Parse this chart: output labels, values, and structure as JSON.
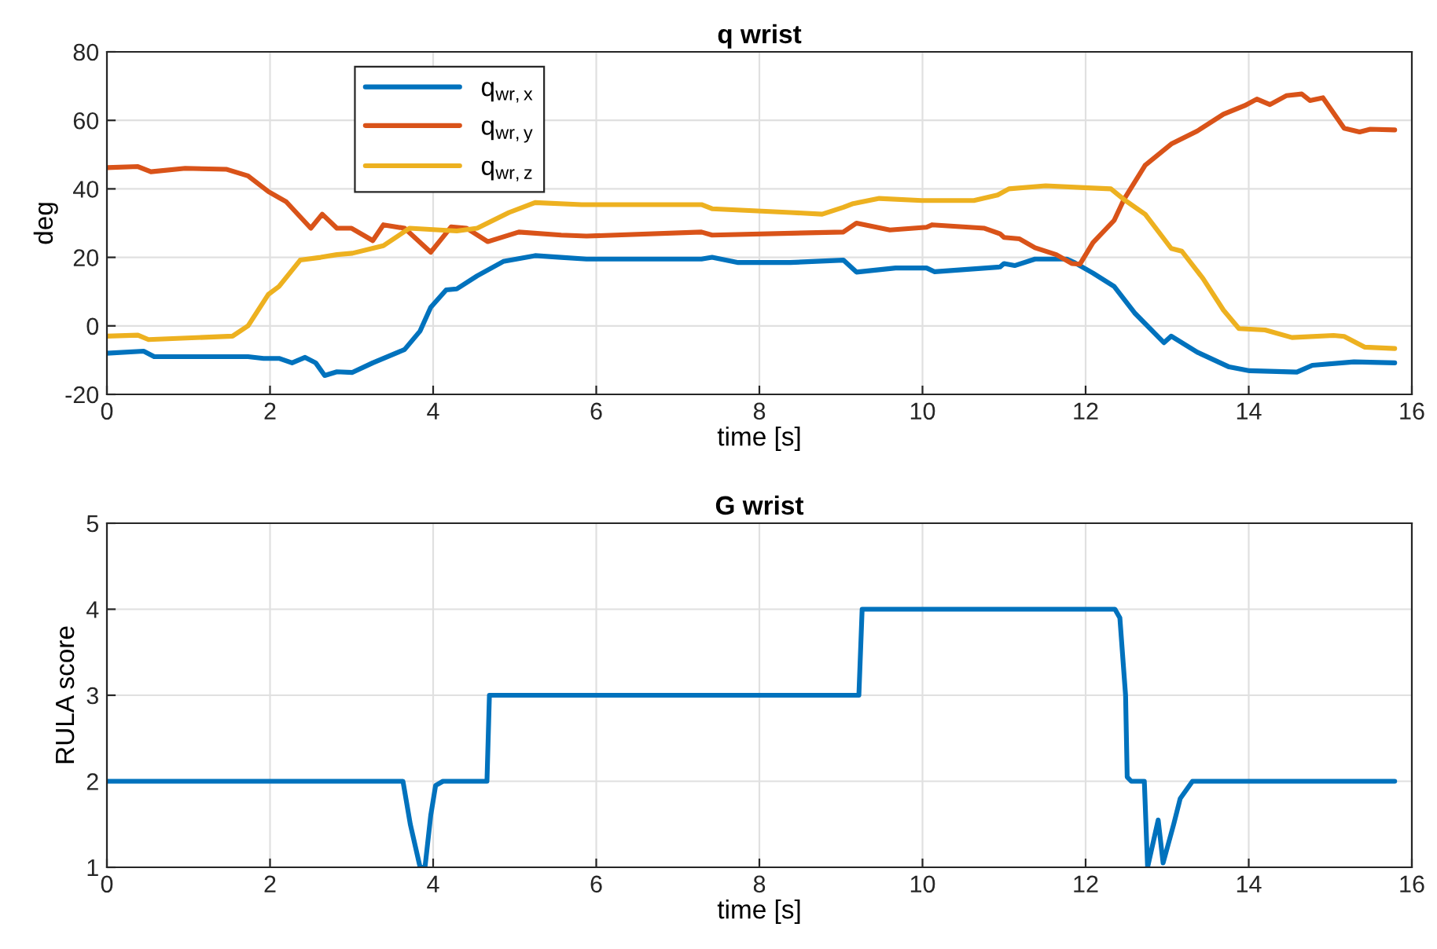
{
  "chart_data": [
    {
      "type": "line",
      "title": "q wrist",
      "xlabel": "time [s]",
      "ylabel": "deg",
      "xlim": [
        0,
        16
      ],
      "xticks": [
        0,
        2,
        4,
        6,
        8,
        10,
        12,
        14,
        16
      ],
      "ylim": [
        -20,
        80
      ],
      "yticks": [
        -20,
        0,
        20,
        40,
        60,
        80
      ],
      "grid": true,
      "legend": "top left",
      "series": [
        {
          "name": "q$_{wr,x}$",
          "color": "#0072bd",
          "x": [
            0,
            0.45,
            0.58,
            1.73,
            1.92,
            2.11,
            2.27,
            2.43,
            2.56,
            2.67,
            2.82,
            3.01,
            3.26,
            3.65,
            3.84,
            3.97,
            4.16,
            4.29,
            4.54,
            4.86,
            5.25,
            5.57,
            5.88,
            7.29,
            7.42,
            7.74,
            8.38,
            9.03,
            9.19,
            9.67,
            10.05,
            10.15,
            10.95,
            11.0,
            11.13,
            11.38,
            11.77,
            11.87,
            12.09,
            12.35,
            12.6,
            12.96,
            13.05,
            13.37,
            13.76,
            14.01,
            14.59,
            14.78,
            15.29,
            15.79
          ],
          "values": [
            -8,
            -7.4,
            -9,
            -9,
            -9.5,
            -9.5,
            -10.8,
            -9.2,
            -10.8,
            -14.5,
            -13.4,
            -13.6,
            -10.8,
            -6.9,
            -1.5,
            5.4,
            10.5,
            10.8,
            14.6,
            18.8,
            20.5,
            20,
            19.5,
            19.5,
            20,
            18.5,
            18.5,
            19.2,
            15.7,
            16.9,
            16.9,
            15.8,
            17.2,
            18.2,
            17.6,
            19.5,
            19.5,
            18.4,
            15.4,
            11.5,
            3.8,
            -4.9,
            -3,
            -7.7,
            -12,
            -13.1,
            -13.5,
            -11.5,
            -10.5,
            -10.8
          ]
        },
        {
          "name": "q$_{wr,y}$",
          "color": "#d95319",
          "x": [
            0,
            0.38,
            0.54,
            0.96,
            1.47,
            1.73,
            1.98,
            2.2,
            2.5,
            2.64,
            2.82,
            3.0,
            3.26,
            3.39,
            3.65,
            3.97,
            4.22,
            4.41,
            4.67,
            5.05,
            5.57,
            5.88,
            7.29,
            7.42,
            9.03,
            9.19,
            9.6,
            10.05,
            10.12,
            10.76,
            10.95,
            11.0,
            11.19,
            11.38,
            11.64,
            11.83,
            11.93,
            12.09,
            12.35,
            12.47,
            12.73,
            13.05,
            13.37,
            13.69,
            13.95,
            14.1,
            14.26,
            14.46,
            14.65,
            14.75,
            14.91,
            15.17,
            15.36,
            15.49,
            15.79
          ],
          "values": [
            46.2,
            46.5,
            45,
            46,
            45.7,
            43.8,
            39.2,
            36.2,
            28.5,
            32.6,
            28.5,
            28.5,
            24.9,
            29.5,
            28.5,
            21.5,
            28.9,
            28.5,
            24.6,
            27.4,
            26.5,
            26.2,
            27.4,
            26.5,
            27.4,
            30,
            28,
            28.8,
            29.5,
            28.5,
            26.9,
            25.8,
            25.4,
            22.8,
            20.8,
            18.2,
            18,
            24.3,
            30.8,
            36.9,
            46.9,
            53.1,
            56.9,
            61.8,
            64.3,
            66.2,
            64.6,
            67.2,
            67.7,
            65.8,
            66.6,
            57.7,
            56.6,
            57.4,
            57.2
          ]
        },
        {
          "name": "q$_{wr,z}$",
          "color": "#edb120",
          "x": [
            0,
            0.38,
            0.51,
            1.54,
            1.73,
            1.98,
            2.11,
            2.37,
            2.62,
            2.82,
            3.01,
            3.39,
            3.71,
            4.29,
            4.54,
            4.93,
            5.25,
            5.82,
            7.29,
            7.42,
            8.38,
            8.77,
            9.03,
            9.15,
            9.47,
            9.99,
            10.63,
            10.92,
            11.06,
            11.51,
            12.03,
            12.31,
            12.47,
            12.73,
            13.05,
            13.18,
            13.44,
            13.69,
            13.88,
            14.2,
            14.53,
            15.04,
            15.17,
            15.42,
            15.79
          ],
          "values": [
            -3,
            -2.7,
            -4,
            -3,
            0,
            9.2,
            11.5,
            19.2,
            20,
            20.8,
            21.2,
            23.4,
            28.5,
            27.7,
            28.5,
            33.1,
            36,
            35.4,
            35.4,
            34.2,
            33.1,
            32.6,
            34.6,
            35.7,
            37.2,
            36.6,
            36.6,
            38.2,
            40,
            40.9,
            40.3,
            40,
            36.9,
            32.6,
            22.6,
            21.8,
            13.8,
            4.6,
            -0.8,
            -1.2,
            -3.4,
            -2.8,
            -3.1,
            -6.2,
            -6.6
          ]
        }
      ]
    },
    {
      "type": "line",
      "title": "G wrist",
      "xlabel": "time [s]",
      "ylabel": "RULA score",
      "xlim": [
        0,
        16
      ],
      "xticks": [
        0,
        2,
        4,
        6,
        8,
        10,
        12,
        14,
        16
      ],
      "ylim": [
        1,
        5
      ],
      "yticks": [
        1,
        2,
        3,
        4,
        5
      ],
      "grid": true,
      "legend": false,
      "series": [
        {
          "color": "#0072bd",
          "x": [
            0,
            3.63,
            3.72,
            3.84,
            3.9,
            3.97,
            4.03,
            4.12,
            4.66,
            4.69,
            9.22,
            9.26,
            12.36,
            12.42,
            12.49,
            12.51,
            12.56,
            12.72,
            12.76,
            12.89,
            12.95,
            13.08,
            13.16,
            13.31,
            15.79
          ],
          "values": [
            2,
            2,
            1.5,
            1.0,
            1.0,
            1.6,
            1.95,
            2,
            2,
            3,
            3,
            4,
            4,
            3.9,
            3.0,
            2.05,
            2,
            2,
            1.0,
            1.55,
            1.05,
            1.5,
            1.8,
            2,
            2
          ]
        }
      ]
    }
  ]
}
